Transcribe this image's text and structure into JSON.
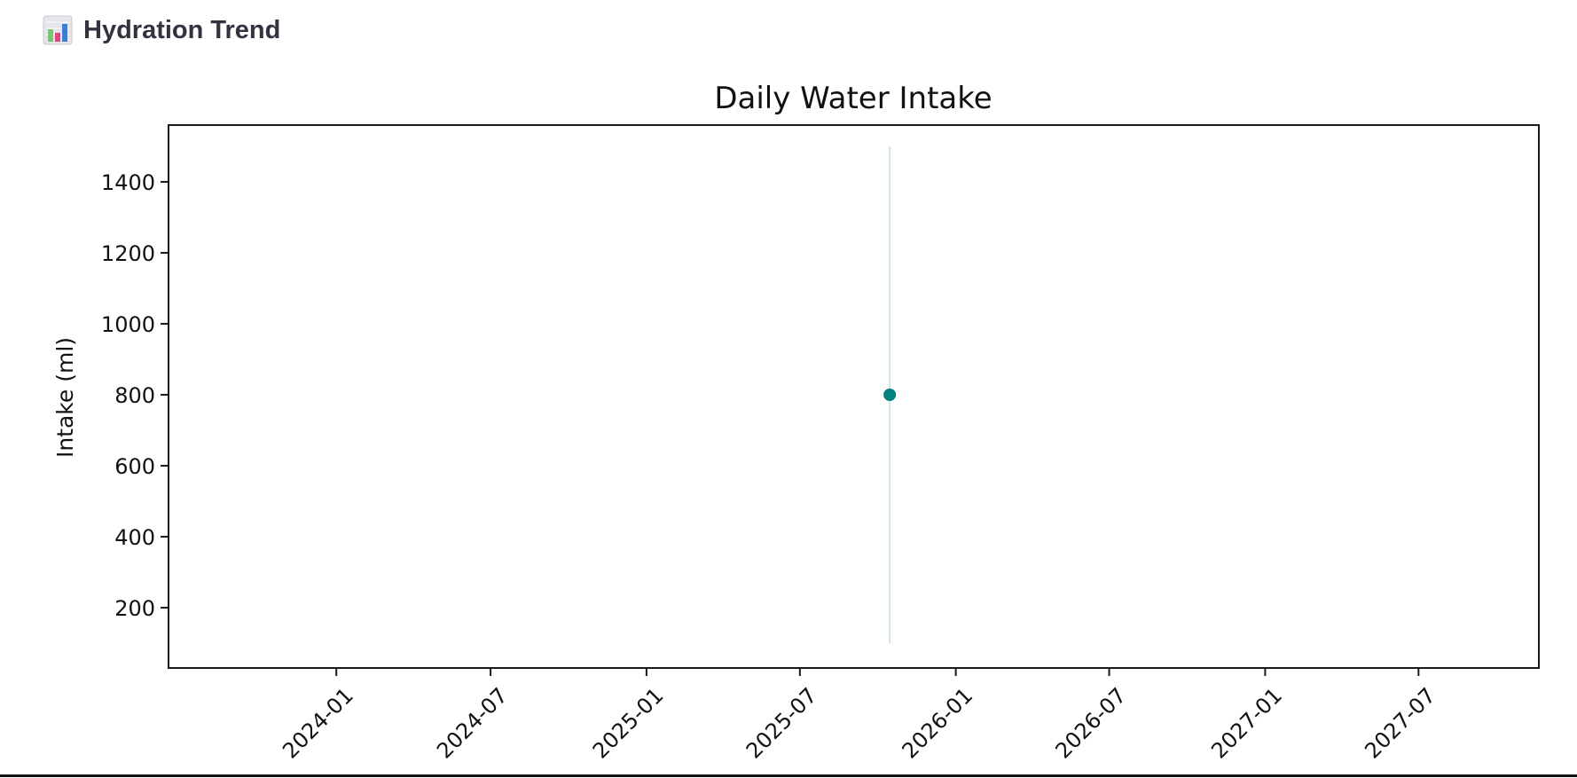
{
  "header": {
    "title": "Hydration Trend",
    "icon": "bar-chart-icon"
  },
  "chart_data": {
    "type": "scatter",
    "title": "Daily Water Intake",
    "xlabel": "",
    "ylabel": "Intake (ml)",
    "x_type": "date",
    "xlim": [
      "2023-06-17",
      "2027-11-20"
    ],
    "ylim": [
      30,
      1560
    ],
    "x_ticks": [
      "2024-01",
      "2024-07",
      "2025-01",
      "2025-07",
      "2026-01",
      "2026-07",
      "2027-01",
      "2027-07"
    ],
    "y_ticks": [
      200,
      400,
      600,
      800,
      1000,
      1200,
      1400
    ],
    "grid": false,
    "points": [
      {
        "x": "2025-10-15",
        "y": 800
      }
    ],
    "vline": {
      "x": "2025-10-15",
      "ymin": 100,
      "ymax": 1500
    },
    "colors": {
      "point": "#008080",
      "vline": "#cce6e8",
      "axes": "#1a1a1a",
      "text": "#111111"
    }
  }
}
